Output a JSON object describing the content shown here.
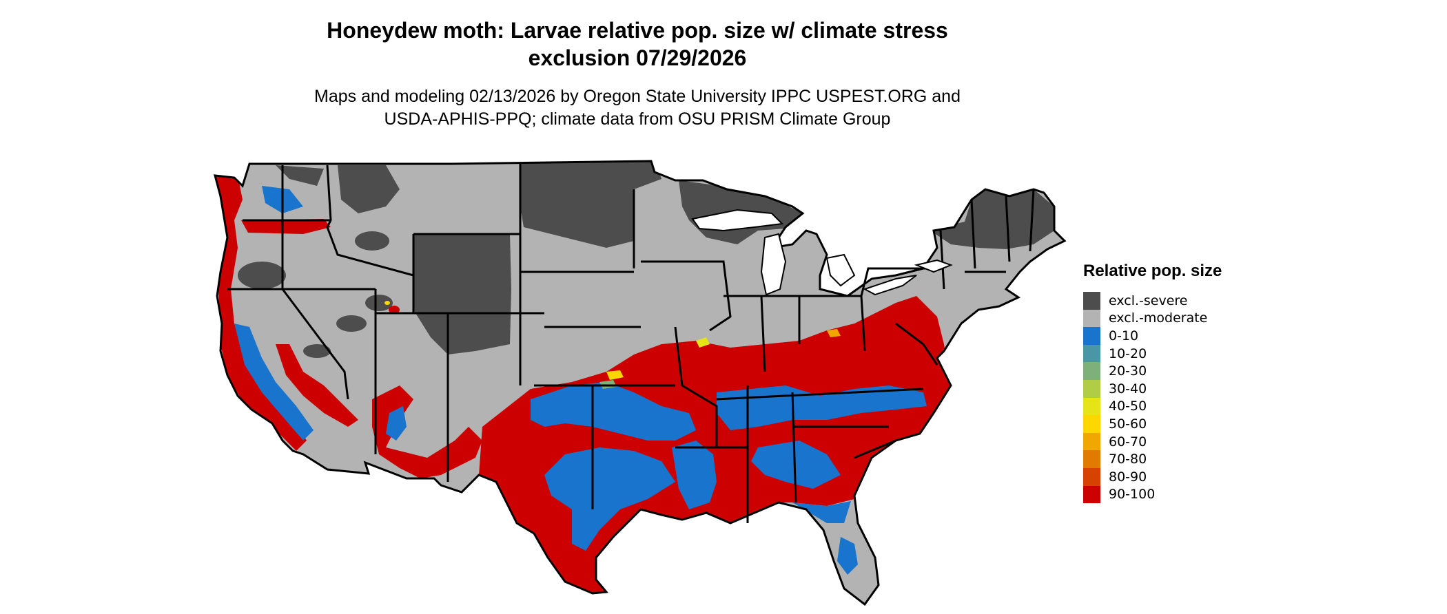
{
  "title_line1": "Honeydew moth: Larvae relative pop. size w/ climate stress",
  "title_line2": "exclusion 07/29/2026",
  "subtitle_line1": "Maps and modeling 02/13/2026 by Oregon State University IPPC USPEST.ORG and",
  "subtitle_line2": "USDA-APHIS-PPQ; climate data from OSU PRISM Climate Group",
  "legend": {
    "title": "Relative pop. size",
    "items": [
      {
        "label": "excl.-severe",
        "color": "#4d4d4d"
      },
      {
        "label": "excl.-moderate",
        "color": "#b3b3b3"
      },
      {
        "label": "0-10",
        "color": "#1874cd"
      },
      {
        "label": "10-20",
        "color": "#4997a6"
      },
      {
        "label": "20-30",
        "color": "#7eb07a"
      },
      {
        "label": "30-40",
        "color": "#b1cd46"
      },
      {
        "label": "40-50",
        "color": "#e5e416"
      },
      {
        "label": "50-60",
        "color": "#ffd700"
      },
      {
        "label": "60-70",
        "color": "#f0a800"
      },
      {
        "label": "70-80",
        "color": "#e37a00"
      },
      {
        "label": "80-90",
        "color": "#d64200"
      },
      {
        "label": "90-100",
        "color": "#cc0000"
      }
    ]
  }
}
